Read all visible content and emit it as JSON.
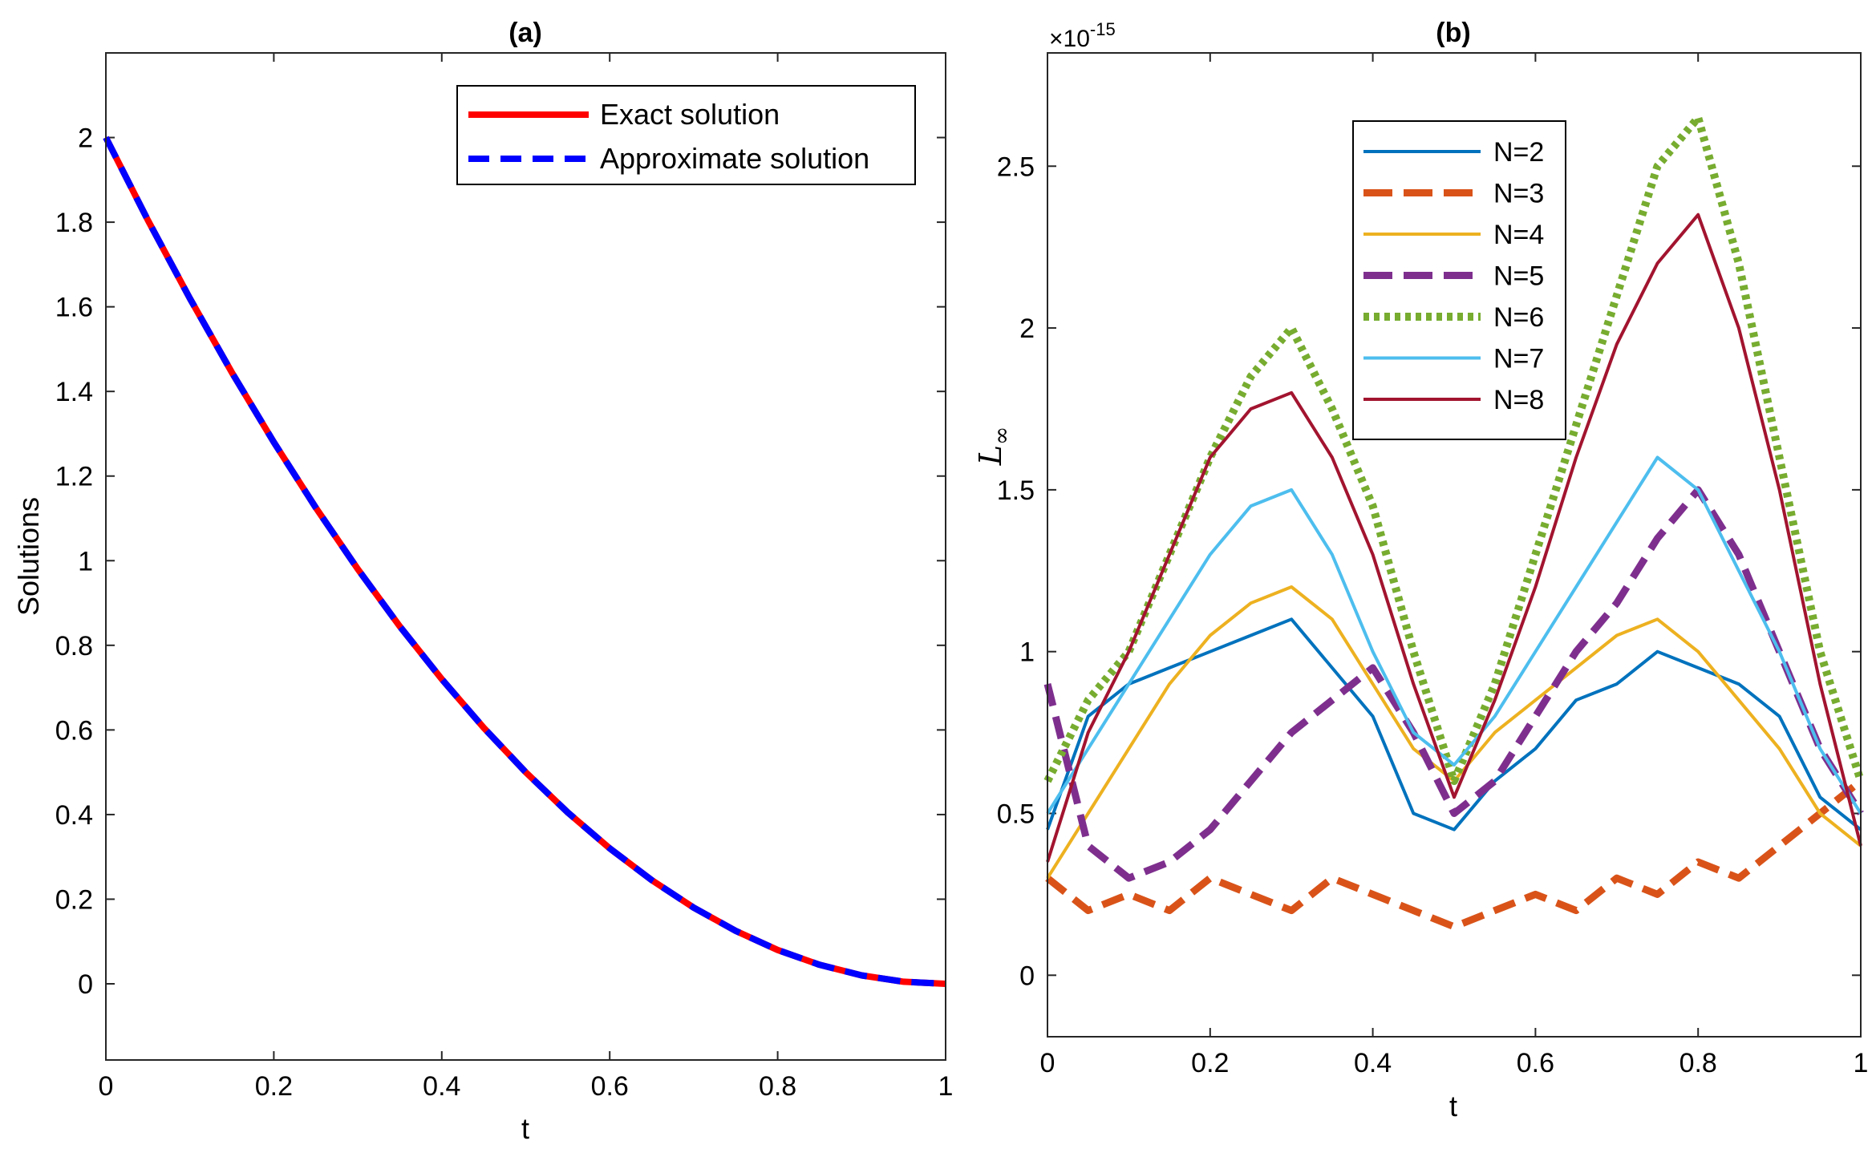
{
  "chart_data": [
    {
      "id": "a",
      "type": "line",
      "title": "(a)",
      "xlabel": "t",
      "ylabel": "Solutions",
      "xlim": [
        0,
        1
      ],
      "ylim": [
        -0.18,
        2.2
      ],
      "xticks": [
        0,
        0.2,
        0.4,
        0.6,
        0.8,
        1
      ],
      "xtick_labels": [
        "0",
        "0.2",
        "0.4",
        "0.6",
        "0.8",
        "1"
      ],
      "yticks": [
        0,
        0.2,
        0.4,
        0.6,
        0.8,
        1,
        1.2,
        1.4,
        1.6,
        1.8,
        2
      ],
      "ytick_labels": [
        "0",
        "0.2",
        "0.4",
        "0.6",
        "0.8",
        "1",
        "1.2",
        "1.4",
        "1.6",
        "1.8",
        "2"
      ],
      "legend_position": "top-right",
      "x": [
        0,
        0.05,
        0.1,
        0.15,
        0.2,
        0.25,
        0.3,
        0.35,
        0.4,
        0.45,
        0.5,
        0.55,
        0.6,
        0.65,
        0.7,
        0.75,
        0.8,
        0.85,
        0.9,
        0.95,
        1
      ],
      "series": [
        {
          "name": "Exact solution",
          "color": "#ff0000",
          "style": "solid",
          "values": [
            2.0,
            1.805,
            1.62,
            1.445,
            1.28,
            1.125,
            0.98,
            0.845,
            0.72,
            0.605,
            0.5,
            0.405,
            0.32,
            0.245,
            0.18,
            0.125,
            0.08,
            0.045,
            0.02,
            0.005,
            0.0
          ]
        },
        {
          "name": "Approximate solution",
          "color": "#0000ff",
          "style": "dashed",
          "values": [
            2.0,
            1.805,
            1.62,
            1.445,
            1.28,
            1.125,
            0.98,
            0.845,
            0.72,
            0.605,
            0.5,
            0.405,
            0.32,
            0.245,
            0.18,
            0.125,
            0.08,
            0.045,
            0.02,
            0.005,
            0.0
          ]
        }
      ]
    },
    {
      "id": "b",
      "type": "line",
      "title": "(b)",
      "xlabel": "t",
      "ylabel": "L∞",
      "ylabel_main": "L",
      "ylabel_sub": "∞",
      "y_exponent_label": "×10",
      "y_exponent_power": "-15",
      "xlim": [
        0,
        1
      ],
      "ylim": [
        -0.19,
        2.85
      ],
      "xticks": [
        0,
        0.2,
        0.4,
        0.6,
        0.8,
        1
      ],
      "xtick_labels": [
        "0",
        "0.2",
        "0.4",
        "0.6",
        "0.8",
        "1"
      ],
      "yticks": [
        0,
        0.5,
        1,
        1.5,
        2,
        2.5
      ],
      "ytick_labels": [
        "0",
        "0.5",
        "1",
        "1.5",
        "2",
        "2.5"
      ],
      "legend_position": "top-center",
      "x": [
        0,
        0.05,
        0.1,
        0.15,
        0.2,
        0.25,
        0.3,
        0.35,
        0.4,
        0.45,
        0.5,
        0.55,
        0.6,
        0.65,
        0.7,
        0.75,
        0.8,
        0.85,
        0.9,
        0.95,
        1
      ],
      "series": [
        {
          "name": "N=2",
          "color": "#0072bd",
          "style": "solid",
          "width": 4,
          "values": [
            0.45,
            0.8,
            0.9,
            0.95,
            1.0,
            1.05,
            1.1,
            0.95,
            0.8,
            0.5,
            0.45,
            0.6,
            0.7,
            0.85,
            0.9,
            1.0,
            0.95,
            0.9,
            0.8,
            0.55,
            0.45
          ]
        },
        {
          "name": "N=3",
          "color": "#d95319",
          "style": "dashed",
          "width": 9,
          "values": [
            0.3,
            0.2,
            0.25,
            0.2,
            0.3,
            0.25,
            0.2,
            0.3,
            0.25,
            0.2,
            0.15,
            0.2,
            0.25,
            0.2,
            0.3,
            0.25,
            0.35,
            0.3,
            0.4,
            0.5,
            0.6
          ]
        },
        {
          "name": "N=4",
          "color": "#edb120",
          "style": "solid",
          "width": 4,
          "values": [
            0.3,
            0.5,
            0.7,
            0.9,
            1.05,
            1.15,
            1.2,
            1.1,
            0.9,
            0.7,
            0.6,
            0.75,
            0.85,
            0.95,
            1.05,
            1.1,
            1.0,
            0.85,
            0.7,
            0.5,
            0.4
          ]
        },
        {
          "name": "N=5",
          "color": "#7e2f8e",
          "style": "dashed",
          "width": 9,
          "values": [
            0.9,
            0.4,
            0.3,
            0.35,
            0.45,
            0.6,
            0.75,
            0.85,
            0.95,
            0.75,
            0.5,
            0.6,
            0.8,
            1.0,
            1.15,
            1.35,
            1.5,
            1.3,
            1.0,
            0.7,
            0.5
          ]
        },
        {
          "name": "N=6",
          "color": "#77ac30",
          "style": "dotted",
          "width": 10,
          "values": [
            0.6,
            0.85,
            1.0,
            1.3,
            1.6,
            1.85,
            2.0,
            1.75,
            1.45,
            1.0,
            0.6,
            0.9,
            1.3,
            1.7,
            2.1,
            2.5,
            2.65,
            2.2,
            1.6,
            1.0,
            0.6
          ]
        },
        {
          "name": "N=7",
          "color": "#4dbeee",
          "style": "solid",
          "width": 4,
          "values": [
            0.5,
            0.7,
            0.9,
            1.1,
            1.3,
            1.45,
            1.5,
            1.3,
            1.0,
            0.75,
            0.65,
            0.8,
            1.0,
            1.2,
            1.4,
            1.6,
            1.5,
            1.25,
            1.0,
            0.7,
            0.5
          ]
        },
        {
          "name": "N=8",
          "color": "#a2142f",
          "style": "solid",
          "width": 4,
          "values": [
            0.35,
            0.75,
            1.0,
            1.3,
            1.6,
            1.75,
            1.8,
            1.6,
            1.3,
            0.9,
            0.55,
            0.85,
            1.2,
            1.6,
            1.95,
            2.2,
            2.35,
            2.0,
            1.5,
            0.9,
            0.4
          ]
        }
      ]
    }
  ]
}
